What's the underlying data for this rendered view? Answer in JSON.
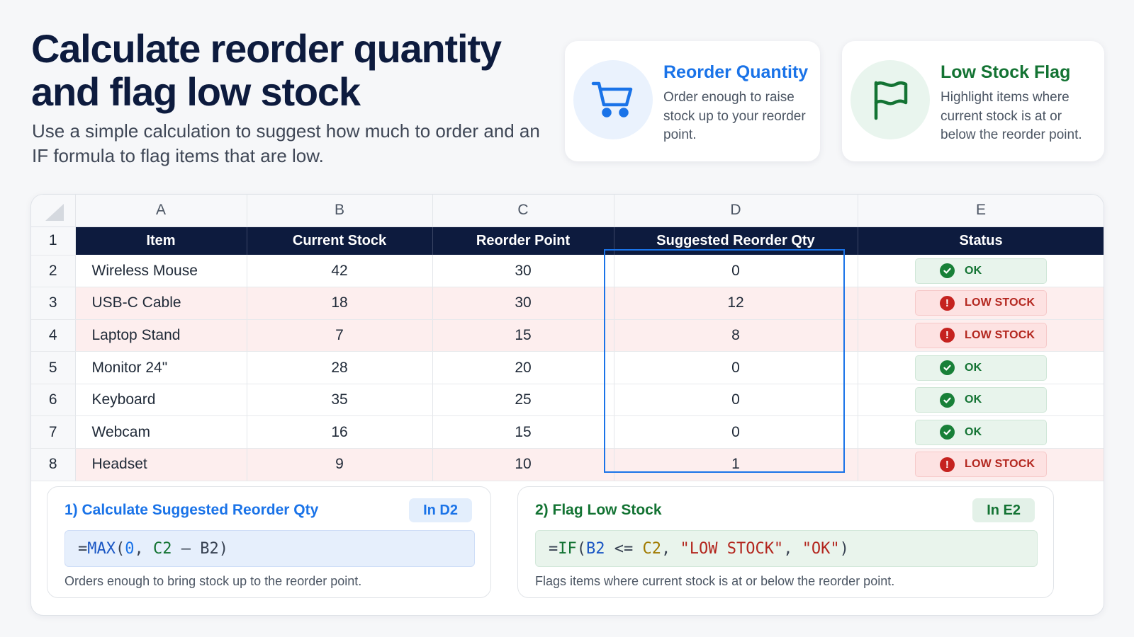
{
  "header": {
    "title": "Calculate reorder quantity and flag low stock",
    "subtitle": "Use a simple calculation to suggest how much to order and an IF formula to flag items that are low."
  },
  "cards": {
    "reorder": {
      "title": "Reorder Quantity",
      "description": "Order enough to raise stock up to your reorder point.",
      "icon": "shopping-cart-icon",
      "accent": "#1a73e8"
    },
    "lowstock": {
      "title": "Low Stock Flag",
      "description": "Highlight items where current stock is at or below the reorder point.",
      "icon": "flag-icon",
      "accent": "#137333"
    }
  },
  "sheet": {
    "columns": [
      "A",
      "B",
      "C",
      "D",
      "E"
    ],
    "headers": [
      "Item",
      "Current Stock",
      "Reorder Point",
      "Suggested Reorder Qty",
      "Status"
    ],
    "rows": [
      {
        "row": "2",
        "item": "Wireless Mouse",
        "current": "42",
        "reorder_point": "30",
        "suggested": "0",
        "status": "OK"
      },
      {
        "row": "3",
        "item": "USB-C Cable",
        "current": "18",
        "reorder_point": "30",
        "suggested": "12",
        "status": "LOW STOCK"
      },
      {
        "row": "4",
        "item": "Laptop Stand",
        "current": "7",
        "reorder_point": "15",
        "suggested": "8",
        "status": "LOW STOCK"
      },
      {
        "row": "5",
        "item": "Monitor 24\"",
        "current": "28",
        "reorder_point": "20",
        "suggested": "0",
        "status": "OK"
      },
      {
        "row": "6",
        "item": "Keyboard",
        "current": "35",
        "reorder_point": "25",
        "suggested": "0",
        "status": "OK"
      },
      {
        "row": "7",
        "item": "Webcam",
        "current": "16",
        "reorder_point": "15",
        "suggested": "0",
        "status": "OK"
      },
      {
        "row": "8",
        "item": "Headset",
        "current": "9",
        "reorder_point": "10",
        "suggested": "1",
        "status": "LOW STOCK"
      }
    ],
    "header_row_number": "1",
    "colors": {
      "header_bg": "#0d1b3e",
      "low_row_bg": "#fdeeee",
      "selection": "#1a73e8"
    }
  },
  "formulas": {
    "reorder": {
      "title": "1) Calculate Suggested Reorder Qty",
      "cell": "In D2",
      "formula": "=MAX(0, C2 - B2)",
      "note": "Orders enough to bring stock up to the reorder point."
    },
    "flag": {
      "title": "2) Flag Low Stock",
      "cell": "In E2",
      "formula": "=IF(B2 <= C2, \"LOW STOCK\", \"OK\")",
      "note": "Flags items where current stock is at or below the reorder point."
    }
  }
}
